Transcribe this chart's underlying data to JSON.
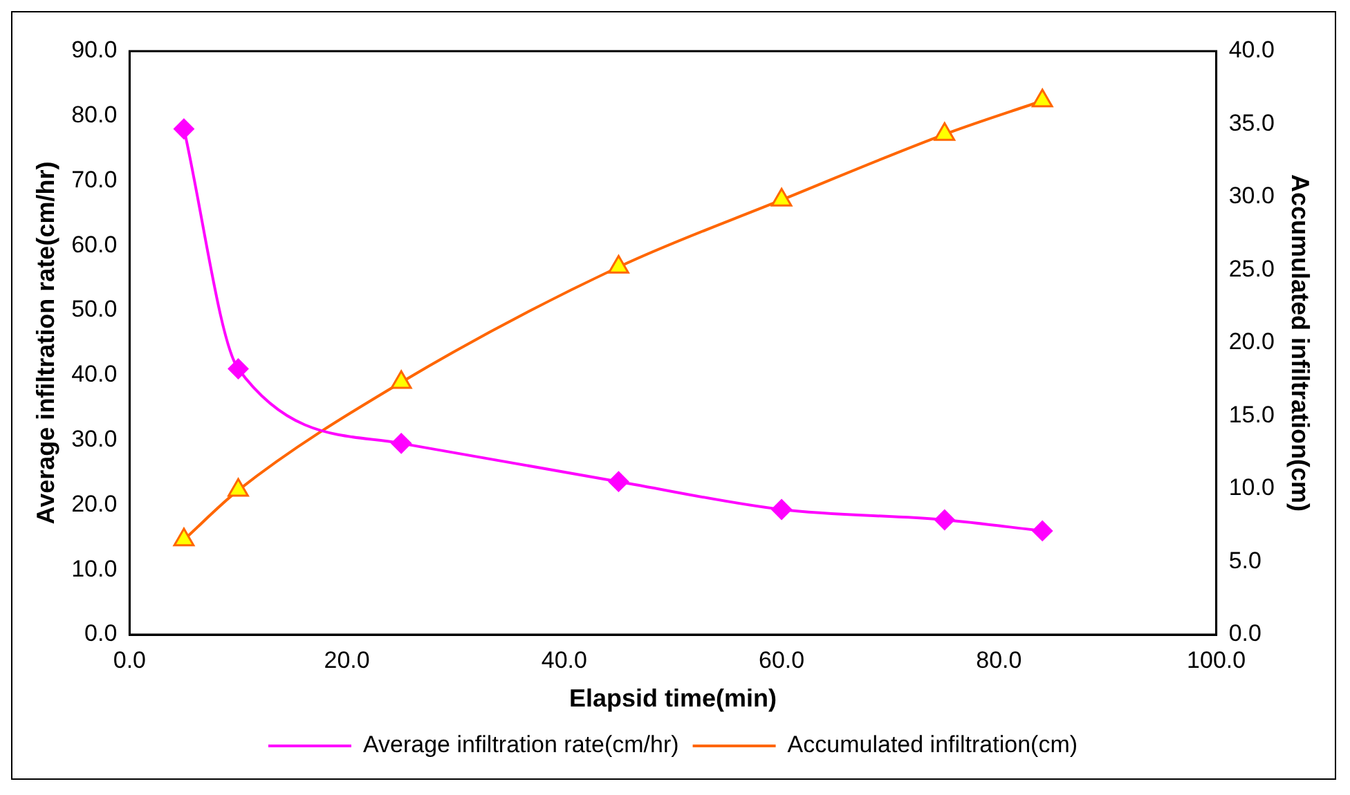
{
  "chart_data": {
    "type": "line",
    "xlabel": "Elapsid time(min)",
    "ylabel": "Average infiltration rate(cm/hr)",
    "y2label": "Accumulated infiltration(cm)",
    "x": [
      5,
      10,
      25,
      45,
      60,
      75,
      84
    ],
    "series": [
      {
        "name": "Average infiltration rate(cm/hr)",
        "color": "#ff00ff",
        "marker": "diamond",
        "values": [
          78,
          41,
          29.5,
          23.6,
          19.3,
          17.7,
          16
        ]
      },
      {
        "name": "Accumulated infiltration(cm)",
        "color": "#ff6600",
        "marker": "triangle",
        "axis": "y2",
        "values": [
          6.5,
          9.9,
          17.3,
          25.2,
          29.8,
          34.3,
          36.6
        ]
      }
    ],
    "xlim": [
      0,
      100
    ],
    "xticks": [
      {
        "value": 0,
        "label": "0.0"
      },
      {
        "value": 20,
        "label": "20.0"
      },
      {
        "value": 40,
        "label": "40.0"
      },
      {
        "value": 60,
        "label": "60.0"
      },
      {
        "value": 80,
        "label": "80.0"
      },
      {
        "value": 100,
        "label": "100.0"
      }
    ],
    "ylim": [
      0,
      90
    ],
    "yticks": [
      {
        "value": 0,
        "label": "0.0"
      },
      {
        "value": 10,
        "label": "10.0"
      },
      {
        "value": 20,
        "label": "20.0"
      },
      {
        "value": 30,
        "label": "30.0"
      },
      {
        "value": 40,
        "label": "40.0"
      },
      {
        "value": 50,
        "label": "50.0"
      },
      {
        "value": 60,
        "label": "60.0"
      },
      {
        "value": 70,
        "label": "70.0"
      },
      {
        "value": 80,
        "label": "80.0"
      },
      {
        "value": 90,
        "label": "90.0"
      }
    ],
    "y2lim": [
      0,
      40
    ],
    "y2ticks": [
      {
        "value": 0,
        "label": "0.0"
      },
      {
        "value": 5,
        "label": "5.0"
      },
      {
        "value": 10,
        "label": "10.0"
      },
      {
        "value": 15,
        "label": "15.0"
      },
      {
        "value": 20,
        "label": "20.0"
      },
      {
        "value": 25,
        "label": "25.0"
      },
      {
        "value": 30,
        "label": "30.0"
      },
      {
        "value": 35,
        "label": "35.0"
      },
      {
        "value": 40,
        "label": "40.0"
      }
    ],
    "grid": false,
    "legend": "bottom"
  }
}
